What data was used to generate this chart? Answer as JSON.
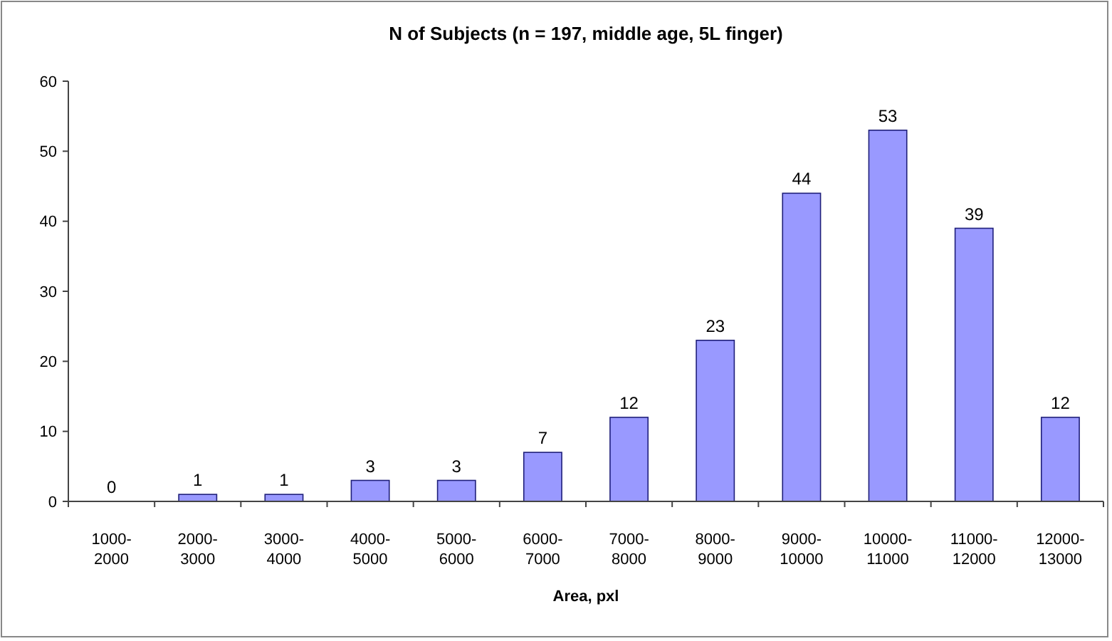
{
  "chart_data": {
    "type": "bar",
    "title": "N of Subjects (n = 197, middle age, 5L finger)",
    "xlabel": "Area, pxl",
    "categories": [
      "1000-2000",
      "2000-3000",
      "3000-4000",
      "4000-5000",
      "5000-6000",
      "6000-7000",
      "7000-8000",
      "8000-9000",
      "9000-10000",
      "10000-11000",
      "11000-12000",
      "12000-13000"
    ],
    "values": [
      0,
      1,
      1,
      3,
      3,
      7,
      12,
      23,
      44,
      53,
      39,
      12
    ],
    "color": "#9999ff",
    "ylim": [
      0,
      60
    ],
    "yticks": [
      0,
      10,
      20,
      30,
      40,
      50,
      60
    ],
    "grid": false,
    "data_labels": true
  }
}
